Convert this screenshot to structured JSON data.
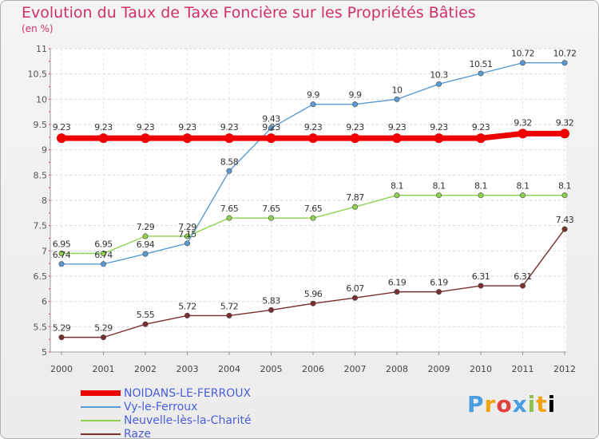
{
  "header": {
    "title": "Evolution du Taux de Taxe Foncière sur les Propriétés Bâties",
    "unit": "(en %)"
  },
  "logo": {
    "text": "Proxiti"
  },
  "chart_data": {
    "type": "line",
    "title": "Evolution du Taux de Taxe Foncière sur les Propriétés Bâties",
    "ylabel": "(en %)",
    "xlabel": "",
    "x": [
      "2000",
      "2001",
      "2002",
      "2003",
      "2004",
      "2005",
      "2006",
      "2007",
      "2008",
      "2009",
      "2010",
      "2011",
      "2012"
    ],
    "ylim": [
      5,
      11
    ],
    "yticks": [
      5,
      5.5,
      6,
      6.5,
      7,
      7.5,
      8,
      8.5,
      9,
      9.5,
      10,
      10.5,
      11
    ],
    "ytick_labels": [
      "5",
      "5.5",
      "6",
      "6.5",
      "7",
      "7.5",
      "8",
      "8.5",
      "9",
      "9.5",
      "10",
      "10.5",
      "11"
    ],
    "grid": true,
    "legend_position": "bottom-left",
    "series": [
      {
        "name": "NOIDANS-LE-FERROUX",
        "color": "#ee0000",
        "values": [
          9.23,
          9.23,
          9.23,
          9.23,
          9.23,
          9.23,
          9.23,
          9.23,
          9.23,
          9.23,
          9.23,
          9.32,
          9.32
        ],
        "labels": [
          "9.23",
          "9.23",
          "9.23",
          "9.23",
          "9.23",
          "9.23",
          "9.23",
          "9.23",
          "9.23",
          "9.23",
          "9.23",
          "9.32",
          "9.32"
        ]
      },
      {
        "name": "Vy-le-Ferroux",
        "color": "#5b9bd5",
        "values": [
          6.74,
          6.74,
          6.94,
          7.15,
          8.58,
          9.43,
          9.9,
          9.9,
          10,
          10.3,
          10.51,
          10.72,
          10.72
        ],
        "labels": [
          "6.74",
          "6.74",
          "6.94",
          "7.15",
          "8.58",
          "9.43",
          "9.9",
          "9.9",
          "10",
          "10.3",
          "10.51",
          "10.72",
          "10.72"
        ]
      },
      {
        "name": "Neuvelle-lès-la-Charité",
        "color": "#8fd14f",
        "values": [
          6.95,
          6.95,
          7.29,
          7.29,
          7.65,
          7.65,
          7.65,
          7.87,
          8.1,
          8.1,
          8.1,
          8.1,
          8.1
        ],
        "labels": [
          "6.95",
          "6.95",
          "7.29",
          "7.29",
          "7.65",
          "7.65",
          "7.65",
          "7.87",
          "8.1",
          "8.1",
          "8.1",
          "8.1",
          "8.1"
        ]
      },
      {
        "name": "Raze",
        "color": "#7a2f2f",
        "values": [
          5.29,
          5.29,
          5.55,
          5.72,
          5.72,
          5.83,
          5.96,
          6.07,
          6.19,
          6.19,
          6.31,
          6.31,
          7.43
        ],
        "labels": [
          "5.29",
          "5.29",
          "5.55",
          "5.72",
          "5.72",
          "5.83",
          "5.96",
          "6.07",
          "6.19",
          "6.19",
          "6.31",
          "6.31",
          "7.43"
        ]
      }
    ]
  }
}
